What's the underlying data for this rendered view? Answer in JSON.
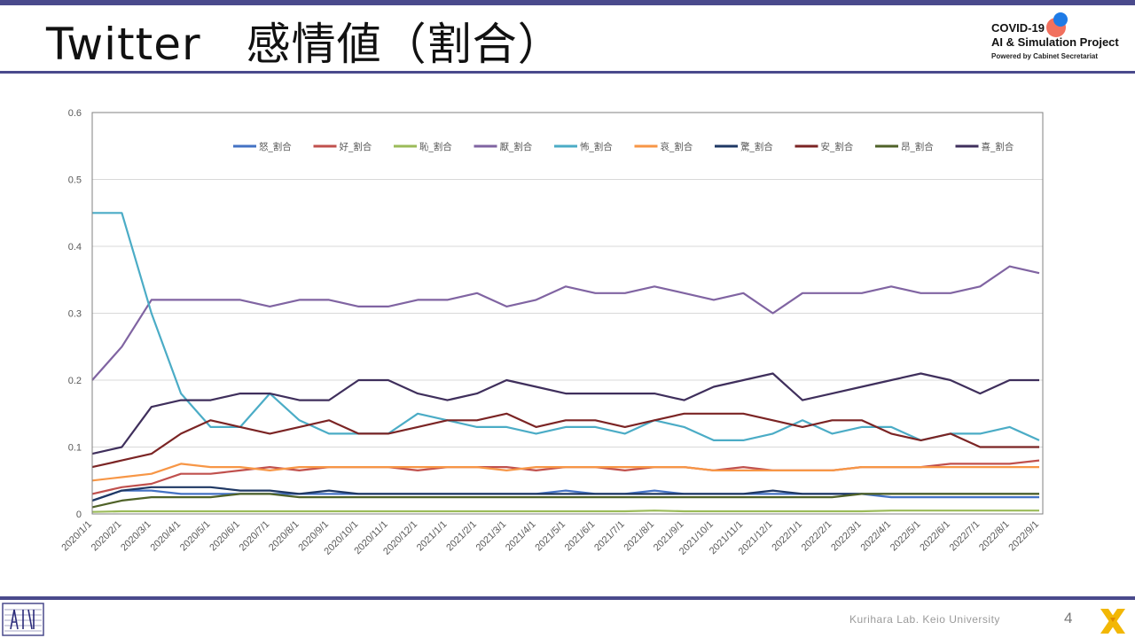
{
  "slide": {
    "title": "Twitter　感情値（割合）",
    "page_number": "4",
    "footer": "Kurihara Lab. Keio University",
    "logo_line1": "COVID-19",
    "logo_line2": "AI & Simulation Project",
    "logo_line3": "Powered by Cabinet Secretariat"
  },
  "colors": {
    "accent_bar": "#4a4a8c"
  },
  "chart_data": {
    "type": "line",
    "title": "",
    "xlabel": "",
    "ylabel": "",
    "ylim": [
      0,
      0.6
    ],
    "y_ticks": [
      "0",
      "0.1",
      "0.2",
      "0.3",
      "0.4",
      "0.5",
      "0.6"
    ],
    "grid": true,
    "legend_position": "top",
    "categories": [
      "2020/1/1",
      "2020/2/1",
      "2020/3/1",
      "2020/4/1",
      "2020/5/1",
      "2020/6/1",
      "2020/7/1",
      "2020/8/1",
      "2020/9/1",
      "2020/10/1",
      "2020/11/1",
      "2020/12/1",
      "2021/1/1",
      "2021/2/1",
      "2021/3/1",
      "2021/4/1",
      "2021/5/1",
      "2021/6/1",
      "2021/7/1",
      "2021/8/1",
      "2021/9/1",
      "2021/10/1",
      "2021/11/1",
      "2021/12/1",
      "2022/1/1",
      "2022/2/1",
      "2022/3/1",
      "2022/4/1",
      "2022/5/1",
      "2022/6/1",
      "2022/7/1",
      "2022/8/1",
      "2022/9/1"
    ],
    "series": [
      {
        "name": "怒_割合",
        "color": "#4472c4",
        "values": [
          0.02,
          0.035,
          0.035,
          0.03,
          0.03,
          0.03,
          0.03,
          0.03,
          0.03,
          0.03,
          0.03,
          0.03,
          0.03,
          0.03,
          0.03,
          0.03,
          0.035,
          0.03,
          0.03,
          0.035,
          0.03,
          0.03,
          0.03,
          0.03,
          0.03,
          0.03,
          0.03,
          0.025,
          0.025,
          0.025,
          0.025,
          0.025,
          0.025
        ]
      },
      {
        "name": "好_割合",
        "color": "#c0504d",
        "values": [
          0.03,
          0.04,
          0.045,
          0.06,
          0.06,
          0.065,
          0.07,
          0.065,
          0.07,
          0.07,
          0.07,
          0.065,
          0.07,
          0.07,
          0.07,
          0.065,
          0.07,
          0.07,
          0.065,
          0.07,
          0.07,
          0.065,
          0.07,
          0.065,
          0.065,
          0.065,
          0.07,
          0.07,
          0.07,
          0.075,
          0.075,
          0.075,
          0.08
        ]
      },
      {
        "name": "恥_割合",
        "color": "#9bbb59",
        "values": [
          0.003,
          0.004,
          0.004,
          0.004,
          0.004,
          0.004,
          0.004,
          0.004,
          0.004,
          0.004,
          0.004,
          0.004,
          0.004,
          0.004,
          0.004,
          0.004,
          0.004,
          0.004,
          0.004,
          0.005,
          0.004,
          0.004,
          0.004,
          0.004,
          0.004,
          0.004,
          0.004,
          0.005,
          0.005,
          0.005,
          0.005,
          0.005,
          0.005
        ]
      },
      {
        "name": "厭_割合",
        "color": "#8064a2",
        "values": [
          0.2,
          0.25,
          0.32,
          0.32,
          0.32,
          0.32,
          0.31,
          0.32,
          0.32,
          0.31,
          0.31,
          0.32,
          0.32,
          0.33,
          0.31,
          0.32,
          0.34,
          0.33,
          0.33,
          0.34,
          0.33,
          0.32,
          0.33,
          0.3,
          0.33,
          0.33,
          0.33,
          0.34,
          0.33,
          0.33,
          0.34,
          0.37,
          0.36
        ]
      },
      {
        "name": "怖_割合",
        "color": "#4bacc6",
        "values": [
          0.45,
          0.45,
          0.3,
          0.18,
          0.13,
          0.13,
          0.18,
          0.14,
          0.12,
          0.12,
          0.12,
          0.15,
          0.14,
          0.13,
          0.13,
          0.12,
          0.13,
          0.13,
          0.12,
          0.14,
          0.13,
          0.11,
          0.11,
          0.12,
          0.14,
          0.12,
          0.13,
          0.13,
          0.11,
          0.12,
          0.12,
          0.13,
          0.11
        ]
      },
      {
        "name": "哀_割合",
        "color": "#f79646",
        "values": [
          0.05,
          0.055,
          0.06,
          0.075,
          0.07,
          0.07,
          0.065,
          0.07,
          0.07,
          0.07,
          0.07,
          0.07,
          0.07,
          0.07,
          0.065,
          0.07,
          0.07,
          0.07,
          0.07,
          0.07,
          0.07,
          0.065,
          0.065,
          0.065,
          0.065,
          0.065,
          0.07,
          0.07,
          0.07,
          0.07,
          0.07,
          0.07,
          0.07
        ]
      },
      {
        "name": "驚_割合",
        "color": "#1f3864",
        "values": [
          0.02,
          0.035,
          0.04,
          0.04,
          0.04,
          0.035,
          0.035,
          0.03,
          0.035,
          0.03,
          0.03,
          0.03,
          0.03,
          0.03,
          0.03,
          0.03,
          0.03,
          0.03,
          0.03,
          0.03,
          0.03,
          0.03,
          0.03,
          0.035,
          0.03,
          0.03,
          0.03,
          0.03,
          0.03,
          0.03,
          0.03,
          0.03,
          0.03
        ]
      },
      {
        "name": "安_割合",
        "color": "#7b2424",
        "values": [
          0.07,
          0.08,
          0.09,
          0.12,
          0.14,
          0.13,
          0.12,
          0.13,
          0.14,
          0.12,
          0.12,
          0.13,
          0.14,
          0.14,
          0.15,
          0.13,
          0.14,
          0.14,
          0.13,
          0.14,
          0.15,
          0.15,
          0.15,
          0.14,
          0.13,
          0.14,
          0.14,
          0.12,
          0.11,
          0.12,
          0.1,
          0.1,
          0.1
        ]
      },
      {
        "name": "昂_割合",
        "color": "#4f6228",
        "values": [
          0.01,
          0.02,
          0.025,
          0.025,
          0.025,
          0.03,
          0.03,
          0.025,
          0.025,
          0.025,
          0.025,
          0.025,
          0.025,
          0.025,
          0.025,
          0.025,
          0.025,
          0.025,
          0.025,
          0.025,
          0.025,
          0.025,
          0.025,
          0.025,
          0.025,
          0.025,
          0.03,
          0.03,
          0.03,
          0.03,
          0.03,
          0.03,
          0.03
        ]
      },
      {
        "name": "喜_割合",
        "color": "#3f2f5c",
        "values": [
          0.09,
          0.1,
          0.16,
          0.17,
          0.17,
          0.18,
          0.18,
          0.17,
          0.17,
          0.2,
          0.2,
          0.18,
          0.17,
          0.18,
          0.2,
          0.19,
          0.18,
          0.18,
          0.18,
          0.18,
          0.17,
          0.19,
          0.2,
          0.21,
          0.17,
          0.18,
          0.19,
          0.2,
          0.21,
          0.2,
          0.18,
          0.2,
          0.2
        ]
      }
    ]
  }
}
